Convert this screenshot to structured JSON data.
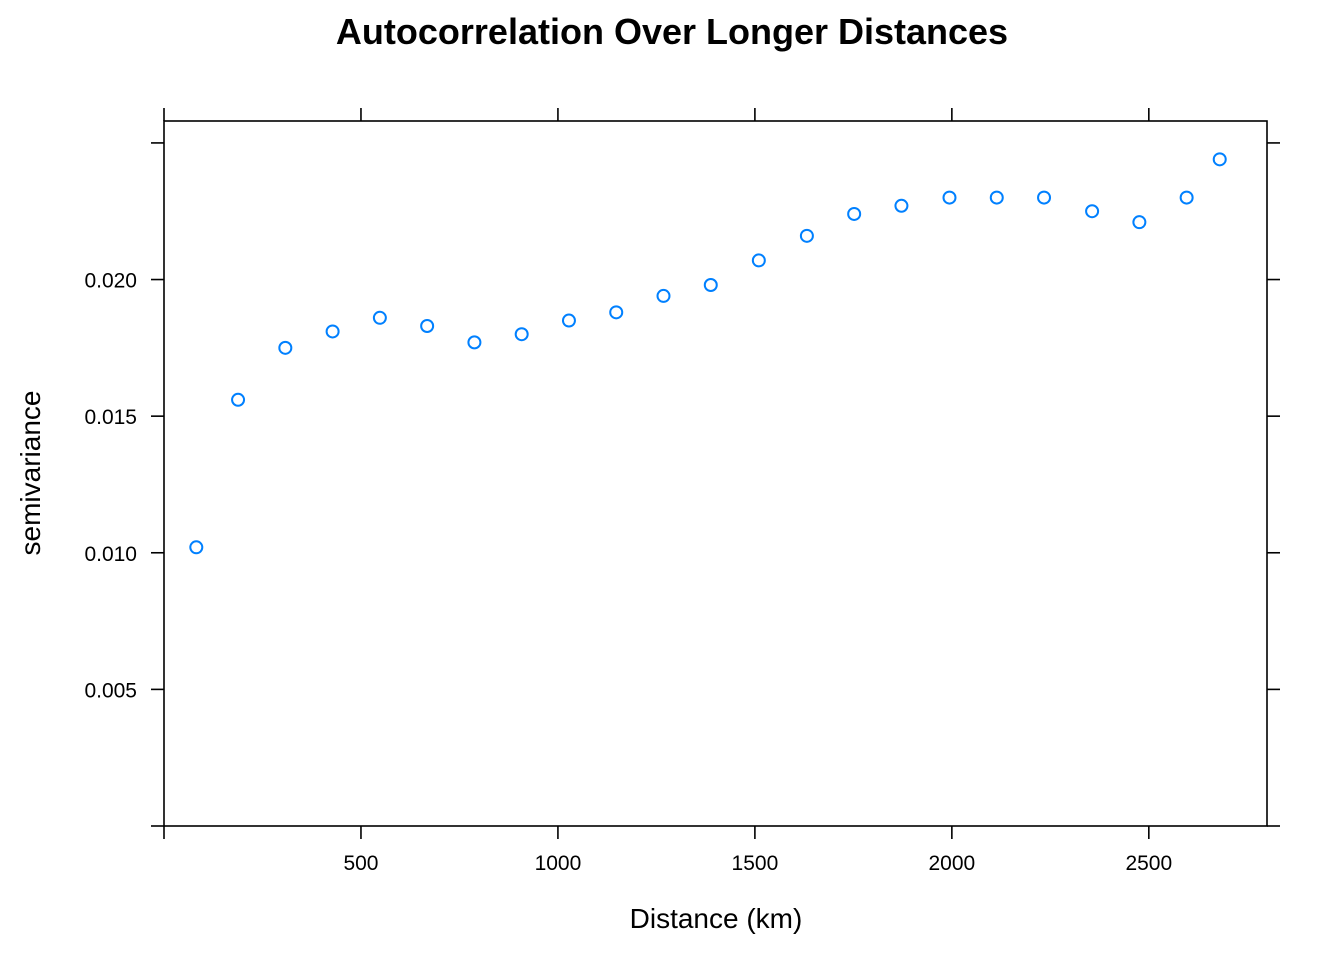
{
  "chart_data": {
    "type": "scatter",
    "title": "Autocorrelation Over Longer Distances",
    "xlabel": "Distance (km)",
    "ylabel": "semivariance",
    "xlim": [
      0,
      2800
    ],
    "ylim": [
      0,
      0.0254
    ],
    "xticks": [
      500,
      1000,
      1500,
      2000,
      2500
    ],
    "xtick_labels": [
      "500",
      "1000",
      "1500",
      "2000",
      "2500"
    ],
    "yticks": [
      0.005,
      0.01,
      0.015,
      0.02
    ],
    "ytick_labels": [
      "0.005",
      "0.010",
      "0.015",
      "0.020"
    ],
    "grid": false,
    "legend": "none",
    "marker": "open-circle",
    "point_color": "#0080FF",
    "series": [
      {
        "x": [
          82,
          188,
          308,
          428,
          548,
          668,
          788,
          908,
          1028,
          1148,
          1268,
          1388,
          1510,
          1632,
          1752,
          1872,
          1994,
          2114,
          2234,
          2356,
          2476,
          2596,
          2680
        ],
        "y": [
          0.0102,
          0.0156,
          0.0175,
          0.0181,
          0.0186,
          0.0183,
          0.0177,
          0.018,
          0.0185,
          0.0188,
          0.0194,
          0.0198,
          0.0207,
          0.0216,
          0.0224,
          0.0227,
          0.023,
          0.023,
          0.023,
          0.0225,
          0.0221,
          0.023,
          0.0244
        ]
      }
    ]
  }
}
